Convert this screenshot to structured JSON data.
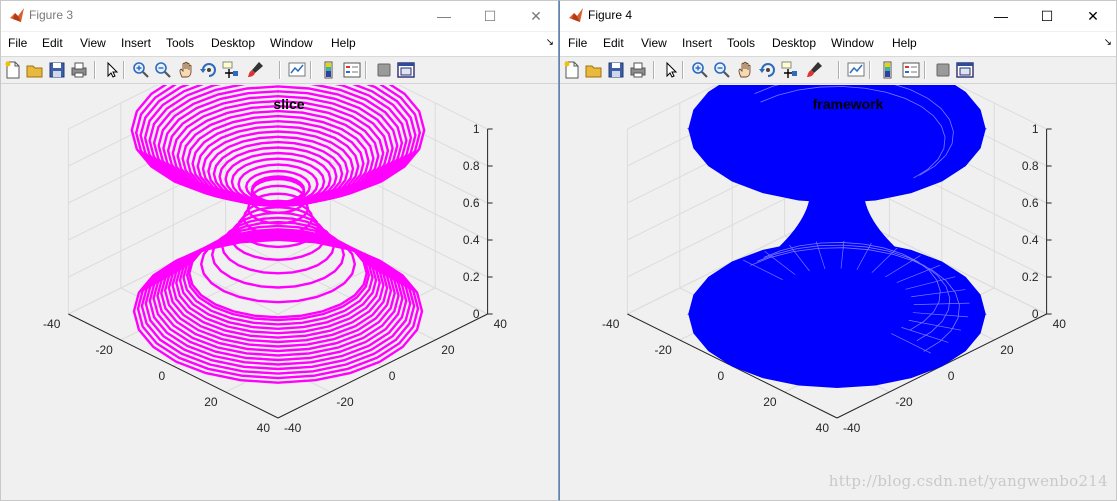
{
  "windows": [
    {
      "title": "Figure 3",
      "active": false,
      "plot_title": "slice",
      "surface_color": "#ff00ff",
      "style": "slice"
    },
    {
      "title": "Figure 4",
      "active": true,
      "plot_title": "framework",
      "surface_color": "#0000ff",
      "style": "framework"
    }
  ],
  "window_controls": {
    "minimize": "—",
    "maximize": "☐",
    "close": "✕"
  },
  "menu": [
    "File",
    "Edit",
    "View",
    "Insert",
    "Tools",
    "Desktop",
    "Window",
    "Help"
  ],
  "dock_arrow": "↘",
  "toolbar_icons": [
    "new-figure-icon",
    "open-file-icon",
    "save-icon",
    "print-icon",
    "pointer-icon",
    "zoom-in-icon",
    "zoom-out-icon",
    "pan-icon",
    "rotate-3d-icon",
    "data-cursor-icon",
    "brush-icon",
    "link-plot-icon",
    "colorbar-icon",
    "legend-icon",
    "hide-plot-tools-icon",
    "show-plot-tools-icon"
  ],
  "chart_data": [
    {
      "type": "surface3d",
      "title": "slice",
      "z_ticks": [
        "0",
        "0.2",
        "0.4",
        "0.6",
        "0.8",
        "1"
      ],
      "y_ticks": [
        "40",
        "20",
        "0",
        "-20",
        "-40"
      ],
      "x_ticks": [
        "-40",
        "-20",
        "0",
        "20",
        "40"
      ],
      "xlim": [
        -40,
        40
      ],
      "ylim": [
        -40,
        40
      ],
      "zlim": [
        0,
        1
      ],
      "grid": true
    },
    {
      "type": "surface3d",
      "title": "framework",
      "z_ticks": [
        "0",
        "0.2",
        "0.4",
        "0.6",
        "0.8",
        "1"
      ],
      "y_ticks": [
        "40",
        "20",
        "0",
        "-20",
        "-40"
      ],
      "x_ticks": [
        "-40",
        "-20",
        "0",
        "20",
        "40"
      ],
      "xlim": [
        -40,
        40
      ],
      "ylim": [
        -40,
        40
      ],
      "zlim": [
        0,
        1
      ],
      "grid": true
    }
  ],
  "watermark": "http://blog.csdn.net/yangwenbo214"
}
